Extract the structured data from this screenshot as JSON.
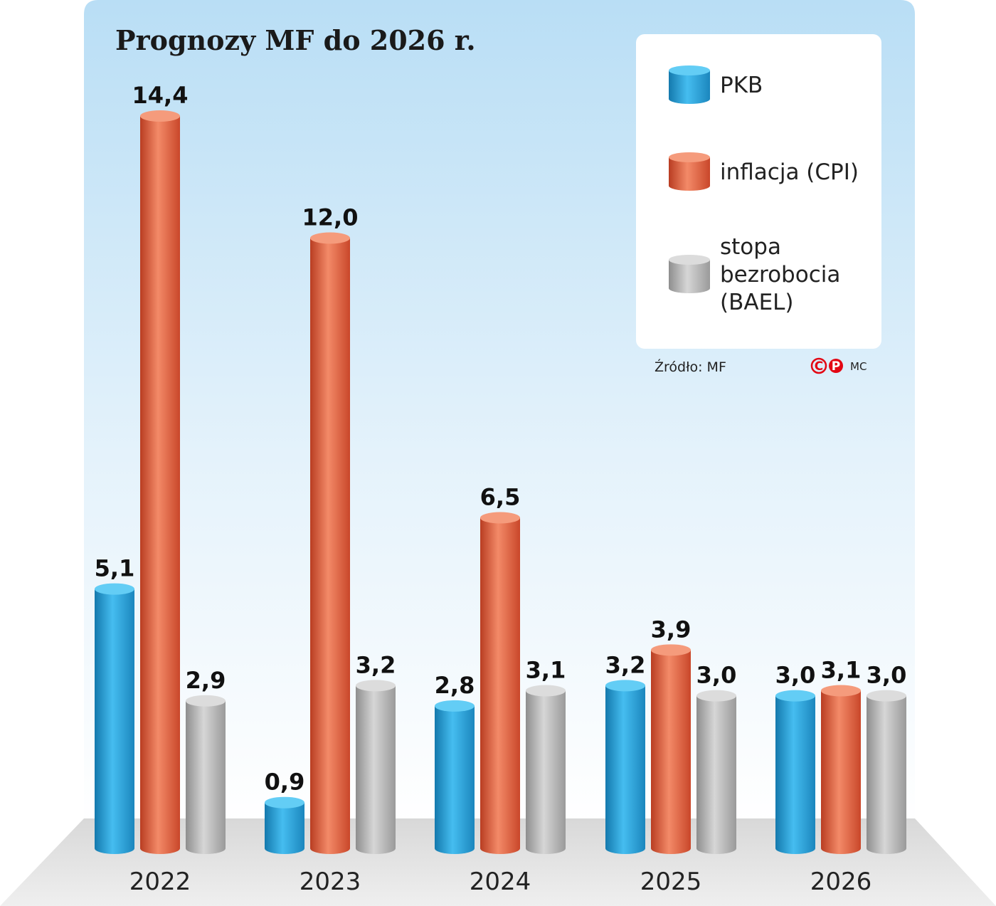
{
  "chart_data": {
    "type": "bar",
    "title": "Prognozy MF do 2026 r.",
    "categories": [
      "2022",
      "2023",
      "2024",
      "2025",
      "2026"
    ],
    "series": [
      {
        "name": "PKB",
        "values": [
          5.1,
          0.9,
          2.8,
          3.2,
          3.0
        ],
        "labels": [
          "5,1",
          "0,9",
          "2,8",
          "3,2",
          "3,0"
        ],
        "color": "#29aae1"
      },
      {
        "name": "inflacja (CPI)",
        "values": [
          14.4,
          12.0,
          6.5,
          3.9,
          3.1
        ],
        "labels": [
          "14,4",
          "12,0",
          "6,5",
          "3,9",
          "3,1"
        ],
        "color": "#e8573a"
      },
      {
        "name": "stopa bezrobocia (BAEL)",
        "legend_lines": [
          "stopa",
          "bezrobocia",
          "(BAEL)"
        ],
        "values": [
          2.9,
          3.2,
          3.1,
          3.0,
          3.0
        ],
        "labels": [
          "2,9",
          "3,2",
          "3,1",
          "3,0",
          "3,0"
        ],
        "color": "#b5b5b5"
      }
    ],
    "ylim": [
      0,
      14.4
    ],
    "grid": false,
    "legend_position": "top-right"
  },
  "source": "Źródło: MF",
  "credit": {
    "logo_letters": [
      "C",
      "P"
    ],
    "initials": "MC"
  },
  "colors": {
    "background_top": "#b9def5",
    "background_bottom": "#ffffff",
    "pkb": "#29aae1",
    "cpi": "#e8573a",
    "bael": "#b5b5b5",
    "logo": "#e30613"
  }
}
